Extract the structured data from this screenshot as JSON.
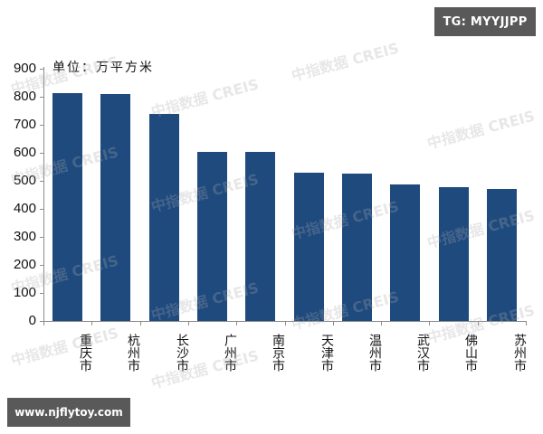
{
  "badges": {
    "top_right": "TG: MYYJJPP",
    "bottom_left": "www.njflytoy.com"
  },
  "watermark_text": "中指数据 CREIS",
  "chart_data": {
    "type": "bar",
    "title": "",
    "unit_label": "单位：万平方米",
    "xlabel": "",
    "ylabel": "万平方米",
    "ylim": [
      0,
      900
    ],
    "yticks": [
      "0",
      "100",
      "200",
      "300",
      "400",
      "500",
      "600",
      "700",
      "800",
      "900"
    ],
    "categories": [
      "重庆市",
      "杭州市",
      "长沙市",
      "广州市",
      "南京市",
      "天津市",
      "温州市",
      "武汉市",
      "佛山市",
      "苏州市"
    ],
    "values": [
      814,
      811,
      740,
      603,
      603,
      530,
      527,
      488,
      476,
      472
    ],
    "bar_color": "#1f4a7e",
    "grid": false,
    "legend": null
  }
}
